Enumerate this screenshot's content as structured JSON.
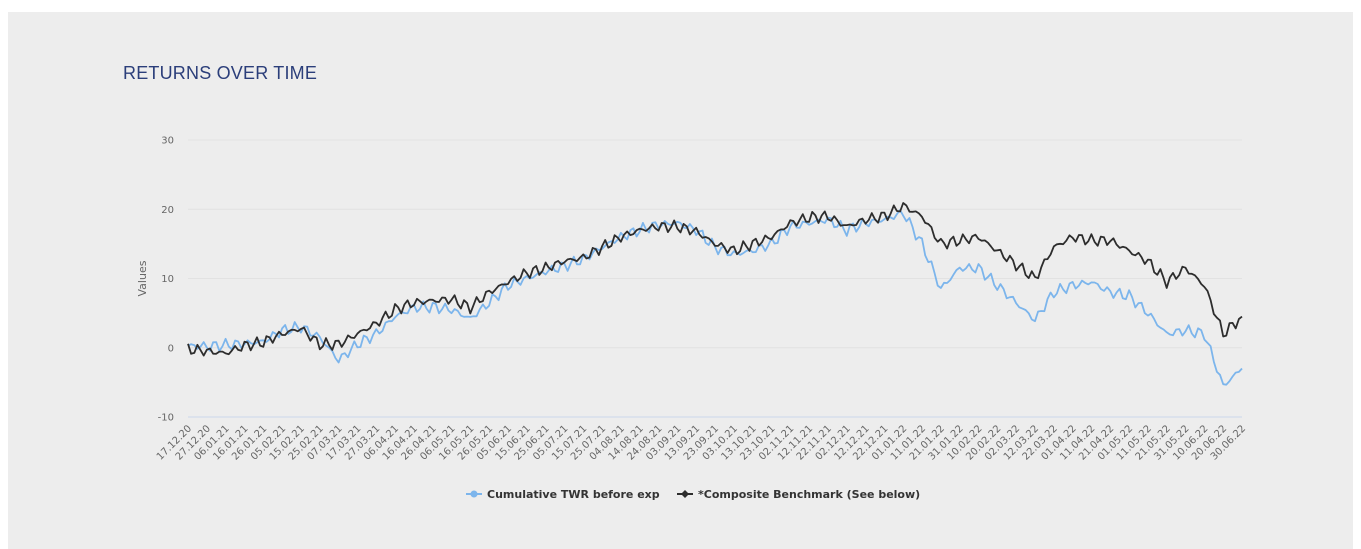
{
  "page": {
    "title": "RETURNS OVER TIME"
  },
  "chart_data": {
    "type": "line",
    "ylabel": "Values",
    "ylim": [
      -10,
      30
    ],
    "yticks": [
      -10,
      0,
      10,
      20,
      30
    ],
    "grid": true,
    "legend_placement": "bottom-center",
    "x": [
      "17.12.20",
      "27.12.20",
      "06.01.21",
      "16.01.21",
      "26.01.21",
      "05.02.21",
      "15.02.21",
      "25.02.21",
      "07.03.21",
      "17.03.21",
      "27.03.21",
      "06.04.21",
      "16.04.21",
      "26.04.21",
      "06.05.21",
      "16.05.21",
      "26.05.21",
      "05.06.21",
      "15.06.21",
      "25.06.21",
      "05.07.21",
      "15.07.21",
      "25.07.21",
      "04.08.21",
      "14.08.21",
      "24.08.21",
      "03.09.21",
      "13.09.21",
      "23.09.21",
      "03.10.21",
      "13.10.21",
      "23.10.21",
      "02.11.21",
      "12.11.21",
      "22.11.21",
      "02.12.21",
      "12.12.21",
      "22.12.21",
      "01.01.22",
      "11.01.22",
      "21.01.22",
      "31.01.22",
      "10.02.22",
      "20.02.22",
      "02.03.22",
      "12.03.22",
      "22.03.22",
      "01.04.22",
      "11.04.22",
      "21.04.22",
      "01.05.22",
      "11.05.22",
      "21.05.22",
      "31.05.22",
      "10.06.22",
      "20.06.22",
      "30.06.22"
    ],
    "series": [
      {
        "name": "Cumulative TWR before exp",
        "color": "#7cb5ec",
        "values": [
          0.3,
          0.2,
          0.4,
          0.6,
          0.9,
          2.5,
          3.0,
          1.5,
          -1.8,
          0.5,
          2.0,
          4.5,
          5.8,
          5.9,
          5.5,
          4.2,
          6.5,
          9.0,
          10.0,
          11.0,
          11.8,
          12.8,
          14.5,
          16.0,
          17.0,
          17.8,
          18.0,
          17.0,
          14.5,
          13.5,
          14.0,
          15.0,
          17.5,
          18.0,
          18.5,
          17.0,
          18.0,
          18.5,
          19.5,
          15.0,
          8.5,
          11.5,
          11.5,
          9.0,
          6.5,
          4.0,
          8.0,
          9.0,
          9.5,
          8.0,
          7.5,
          5.0,
          2.0,
          2.5,
          2.0,
          -5.5,
          -3.0
        ]
      },
      {
        "name": "*Composite Benchmark (See below)",
        "color": "#2d2d2d",
        "values": [
          -0.2,
          -0.5,
          -0.8,
          0.3,
          0.8,
          2.0,
          2.8,
          0.5,
          0.5,
          2.0,
          3.5,
          5.5,
          6.5,
          6.8,
          7.0,
          5.8,
          8.0,
          9.5,
          10.8,
          11.5,
          12.5,
          13.0,
          14.5,
          16.0,
          17.0,
          17.5,
          17.5,
          16.8,
          15.0,
          14.0,
          15.0,
          16.0,
          18.0,
          18.8,
          19.0,
          17.5,
          18.5,
          19.0,
          20.5,
          19.0,
          15.0,
          15.5,
          16.0,
          14.0,
          12.0,
          10.0,
          14.5,
          16.0,
          15.5,
          15.5,
          14.0,
          12.5,
          9.5,
          11.5,
          9.0,
          2.0,
          4.5
        ]
      }
    ]
  }
}
